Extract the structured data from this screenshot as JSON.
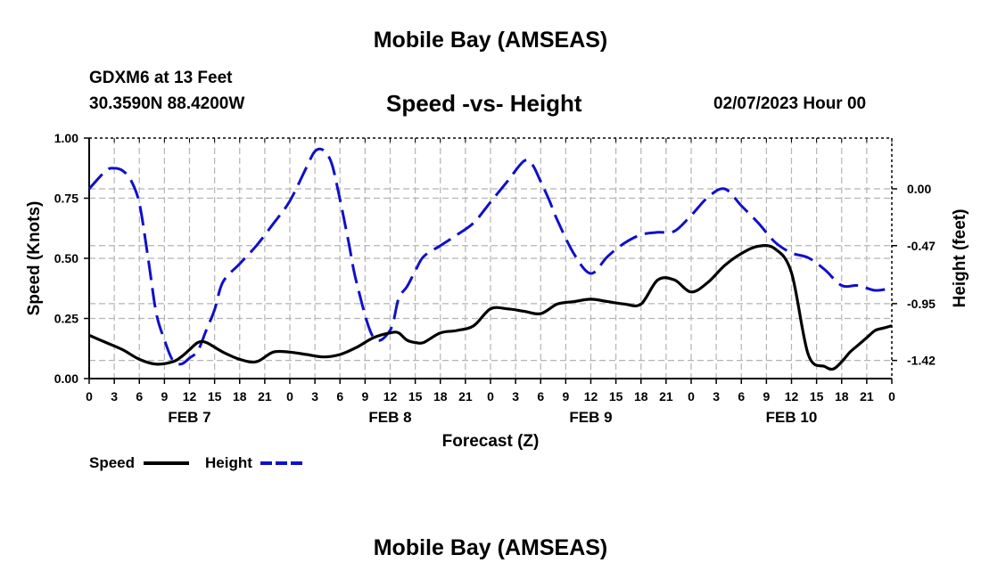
{
  "header": {
    "title": "Mobile Bay (AMSEAS)",
    "station": "GDXM6 at 13 Feet",
    "coords": "30.3590N  88.4200W",
    "subtitle": "Speed -vs- Height",
    "run_time": "02/07/2023 Hour 00"
  },
  "footer": {
    "next_title": "Mobile Bay (AMSEAS)"
  },
  "chart_data": {
    "type": "line",
    "title": "Speed -vs- Height",
    "xlabel": "Forecast (Z)",
    "ylabel": "Speed (Knots)",
    "y2label": "Height (feet)",
    "xlim": [
      0,
      96
    ],
    "ylim": [
      0,
      1
    ],
    "y2lim": [
      -1.57,
      0.42
    ],
    "grid": true,
    "x_tick_labels": [
      "0",
      "3",
      "6",
      "9",
      "12",
      "15",
      "18",
      "21",
      "0",
      "3",
      "6",
      "9",
      "12",
      "15",
      "18",
      "21",
      "0",
      "3",
      "6",
      "9",
      "12",
      "15",
      "18",
      "21",
      "0",
      "3",
      "6",
      "9",
      "12",
      "15",
      "18",
      "21",
      "0"
    ],
    "date_labels": [
      {
        "hour": 12,
        "label": "FEB 7"
      },
      {
        "hour": 36,
        "label": "FEB 8"
      },
      {
        "hour": 60,
        "label": "FEB 9"
      },
      {
        "hour": 84,
        "label": "FEB 10"
      }
    ],
    "y_ticks": [
      "0.00",
      "0.25",
      "0.50",
      "0.75",
      "1.00"
    ],
    "y2_ticks": [
      "0.00",
      "-0.47",
      "-0.95",
      "-1.42"
    ],
    "legend": {
      "position": "bottom-left",
      "entries": [
        "Speed",
        "Height"
      ]
    },
    "colors": {
      "speed": "#000000",
      "height": "#1010c8"
    },
    "series": [
      {
        "name": "Speed",
        "x": [
          0,
          2,
          4,
          6,
          8,
          10,
          11,
          12,
          13,
          14,
          16,
          18,
          20,
          22,
          24,
          26,
          28,
          30,
          32,
          34,
          36,
          37,
          38,
          39,
          40,
          42,
          44,
          46,
          48,
          50,
          52,
          54,
          56,
          58,
          60,
          62,
          64,
          66,
          68,
          70,
          72,
          74,
          76,
          78,
          80,
          82,
          84,
          86,
          88,
          89,
          90,
          91,
          92,
          93,
          94,
          95,
          96
        ],
        "y": [
          0.18,
          0.15,
          0.12,
          0.08,
          0.06,
          0.07,
          0.09,
          0.12,
          0.15,
          0.15,
          0.11,
          0.08,
          0.07,
          0.11,
          0.11,
          0.1,
          0.09,
          0.1,
          0.13,
          0.17,
          0.19,
          0.19,
          0.16,
          0.15,
          0.15,
          0.19,
          0.2,
          0.22,
          0.29,
          0.29,
          0.28,
          0.27,
          0.31,
          0.32,
          0.33,
          0.32,
          0.31,
          0.31,
          0.41,
          0.41,
          0.36,
          0.4,
          0.47,
          0.52,
          0.55,
          0.54,
          0.44,
          0.1,
          0.05,
          0.04,
          0.07,
          0.11,
          0.14,
          0.17,
          0.2,
          0.21,
          0.22
        ]
      },
      {
        "name": "Height",
        "x": [
          0,
          2,
          3,
          4,
          5,
          6,
          7,
          8,
          9,
          10,
          11,
          12,
          13,
          14,
          15,
          16,
          18,
          20,
          22,
          24,
          26,
          27,
          28,
          29,
          30,
          31,
          32,
          34,
          36,
          37,
          38,
          39,
          40,
          42,
          44,
          46,
          48,
          50,
          52,
          53,
          54,
          55,
          56,
          58,
          60,
          62,
          64,
          66,
          68,
          70,
          72,
          74,
          76,
          78,
          80,
          82,
          84,
          86,
          88,
          90,
          92,
          94,
          96
        ],
        "y": [
          0.0,
          0.15,
          0.17,
          0.15,
          0.07,
          -0.12,
          -0.55,
          -1.02,
          -1.25,
          -1.42,
          -1.45,
          -1.4,
          -1.34,
          -1.17,
          -1.0,
          -0.77,
          -0.62,
          -0.47,
          -0.29,
          -0.1,
          0.18,
          0.31,
          0.32,
          0.21,
          -0.09,
          -0.43,
          -0.78,
          -1.23,
          -1.17,
          -0.91,
          -0.81,
          -0.68,
          -0.56,
          -0.47,
          -0.38,
          -0.28,
          -0.11,
          0.06,
          0.23,
          0.2,
          0.06,
          -0.09,
          -0.26,
          -0.54,
          -0.7,
          -0.56,
          -0.45,
          -0.38,
          -0.36,
          -0.35,
          -0.22,
          -0.07,
          -0.0,
          -0.14,
          -0.28,
          -0.44,
          -0.53,
          -0.57,
          -0.67,
          -0.8,
          -0.8,
          -0.84,
          -0.82
        ]
      }
    ]
  }
}
